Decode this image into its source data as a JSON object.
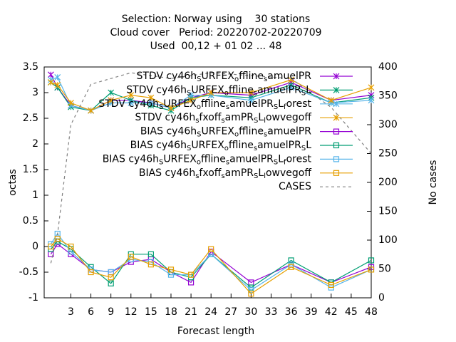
{
  "chart_data": {
    "type": "line",
    "title": [
      "Selection: Norway using    30 stations",
      "Cloud cover   Period: 20220702-20220709",
      "Used  00,12 + 01 02 ... 48"
    ],
    "xlabel": "Forecast length",
    "ylabel": "octas",
    "y2label": "No cases",
    "x": [
      0,
      1,
      3,
      6,
      9,
      12,
      15,
      18,
      21,
      24,
      30,
      36,
      42,
      48
    ],
    "xlim": [
      -1,
      48
    ],
    "xticks": [
      3,
      6,
      9,
      12,
      15,
      18,
      21,
      24,
      27,
      30,
      33,
      36,
      39,
      42,
      45,
      48
    ],
    "ylim": [
      -1,
      3.5
    ],
    "yticks": [
      -1,
      -0.5,
      0,
      0.5,
      1,
      1.5,
      2,
      2.5,
      3,
      3.5
    ],
    "y2lim": [
      0,
      400
    ],
    "y2ticks": [
      0,
      50,
      100,
      150,
      200,
      250,
      300,
      350,
      400
    ],
    "legend": "top right",
    "series": [
      {
        "name": "STDV cy46h_SURFEX_offline_samuelPR",
        "color": "#9400d3",
        "marker": "cross",
        "values": [
          3.35,
          3.1,
          2.75,
          2.65,
          2.85,
          2.85,
          2.8,
          2.7,
          2.9,
          3.0,
          2.95,
          3.2,
          2.85,
          2.95
        ]
      },
      {
        "name": "STDV cy46h_SURFEX_offline_samuelPR_SL",
        "color": "#009e73",
        "marker": "cross",
        "values": [
          3.2,
          3.1,
          2.72,
          2.65,
          3.0,
          2.85,
          2.75,
          2.65,
          2.9,
          2.95,
          2.9,
          3.15,
          2.8,
          2.9
        ]
      },
      {
        "name": "STDV cy46h_SURFEX_offline_samuelPR_SL_forest",
        "color": "#56b4e9",
        "marker": "cross",
        "values": [
          3.25,
          3.3,
          2.75,
          2.65,
          2.8,
          2.8,
          2.8,
          2.7,
          2.95,
          2.95,
          2.85,
          3.1,
          2.8,
          2.85
        ]
      },
      {
        "name": "STDV cy46h_sfxoff_samPR_SL_lowvegoff",
        "color": "#e69f00",
        "marker": "cross",
        "values": [
          3.2,
          3.15,
          2.8,
          2.65,
          2.85,
          2.95,
          2.9,
          2.7,
          2.85,
          3.0,
          3.0,
          3.25,
          2.85,
          3.1
        ]
      },
      {
        "name": "BIAS cy46h_SURFEX_offline_samuelPR",
        "color": "#9400d3",
        "marker": "square",
        "values": [
          -0.15,
          0.05,
          -0.15,
          -0.45,
          -0.5,
          -0.3,
          -0.25,
          -0.5,
          -0.7,
          -0.1,
          -0.7,
          -0.35,
          -0.7,
          -0.4
        ]
      },
      {
        "name": "BIAS cy46h_SURFEX_offline_samuelPR_SL",
        "color": "#009e73",
        "marker": "square",
        "values": [
          -0.05,
          0.1,
          -0.05,
          -0.4,
          -0.72,
          -0.15,
          -0.15,
          -0.5,
          -0.6,
          -0.15,
          -0.8,
          -0.27,
          -0.7,
          -0.27
        ]
      },
      {
        "name": "BIAS cy46h_SURFEX_offline_samuelPR_SL_forest",
        "color": "#56b4e9",
        "marker": "square",
        "values": [
          0.05,
          0.25,
          -0.1,
          -0.45,
          -0.5,
          -0.25,
          -0.3,
          -0.55,
          -0.55,
          -0.15,
          -0.85,
          -0.35,
          -0.8,
          -0.45
        ]
      },
      {
        "name": "BIAS cy46h_sfxoff_samPR_SL_lowvegoff",
        "color": "#e69f00",
        "marker": "square",
        "values": [
          0.0,
          0.15,
          0.0,
          -0.5,
          -0.6,
          -0.2,
          -0.35,
          -0.45,
          -0.55,
          -0.05,
          -0.92,
          -0.4,
          -0.75,
          -0.45
        ]
      },
      {
        "name": "CASES",
        "color": "#808080",
        "marker": "none",
        "dash": true,
        "axis": "y2",
        "values": [
          60,
          110,
          300,
          370,
          380,
          390,
          385,
          380,
          385,
          390,
          385,
          380,
          330,
          250
        ]
      }
    ]
  }
}
